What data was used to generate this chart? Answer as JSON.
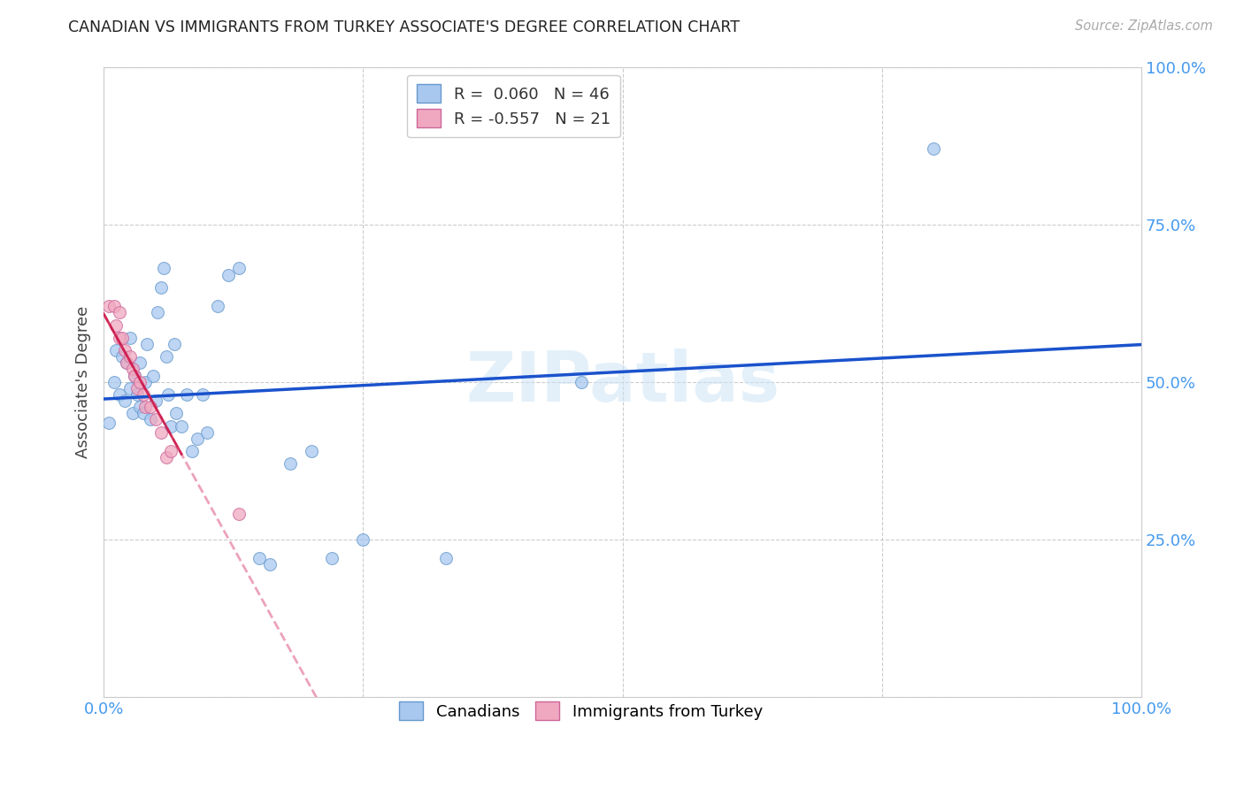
{
  "title": "CANADIAN VS IMMIGRANTS FROM TURKEY ASSOCIATE'S DEGREE CORRELATION CHART",
  "source": "Source: ZipAtlas.com",
  "ylabel": "Associate's Degree",
  "watermark": "ZIPatlas",
  "legend_label_canadian": "Canadians",
  "legend_label_turkey": "Immigrants from Turkey",
  "canadian_color": "#a8c8f0",
  "canadian_edge_color": "#6699cc",
  "turkey_color": "#f0a8c0",
  "turkey_edge_color": "#cc6699",
  "trendline_canadian_color": "#1a52cc",
  "trendline_turkey_color": "#dd5588",
  "R_canadian": 0.06,
  "N_canadian": 46,
  "R_turkey": -0.557,
  "N_turkey": 21,
  "canadian_x": [
    0.005,
    0.01,
    0.012,
    0.015,
    0.018,
    0.02,
    0.022,
    0.025,
    0.025,
    0.028,
    0.03,
    0.032,
    0.035,
    0.035,
    0.038,
    0.04,
    0.042,
    0.045,
    0.048,
    0.05,
    0.052,
    0.055,
    0.058,
    0.06,
    0.062,
    0.065,
    0.068,
    0.07,
    0.075,
    0.08,
    0.085,
    0.09,
    0.095,
    0.1,
    0.11,
    0.12,
    0.13,
    0.15,
    0.16,
    0.18,
    0.2,
    0.22,
    0.25,
    0.33,
    0.46,
    0.8
  ],
  "canadian_y": [
    0.435,
    0.5,
    0.55,
    0.48,
    0.54,
    0.47,
    0.53,
    0.49,
    0.57,
    0.45,
    0.51,
    0.48,
    0.46,
    0.53,
    0.45,
    0.5,
    0.56,
    0.44,
    0.51,
    0.47,
    0.61,
    0.65,
    0.68,
    0.54,
    0.48,
    0.43,
    0.56,
    0.45,
    0.43,
    0.48,
    0.39,
    0.41,
    0.48,
    0.42,
    0.62,
    0.67,
    0.68,
    0.22,
    0.21,
    0.37,
    0.39,
    0.22,
    0.25,
    0.22,
    0.5,
    0.87
  ],
  "turkey_x": [
    0.005,
    0.01,
    0.012,
    0.015,
    0.015,
    0.018,
    0.02,
    0.022,
    0.025,
    0.028,
    0.03,
    0.032,
    0.035,
    0.038,
    0.04,
    0.045,
    0.05,
    0.055,
    0.06,
    0.065,
    0.13
  ],
  "turkey_y": [
    0.62,
    0.62,
    0.59,
    0.57,
    0.61,
    0.57,
    0.55,
    0.53,
    0.54,
    0.52,
    0.51,
    0.49,
    0.5,
    0.48,
    0.46,
    0.46,
    0.44,
    0.42,
    0.38,
    0.39,
    0.29
  ],
  "xlim": [
    0.0,
    1.0
  ],
  "ylim": [
    0.0,
    1.0
  ],
  "xticks": [
    0.0,
    0.25,
    0.5,
    0.75,
    1.0
  ],
  "xtick_labels": [
    "0.0%",
    "",
    "",
    "",
    "100.0%"
  ],
  "yticks": [
    0.0,
    0.25,
    0.5,
    0.75,
    1.0
  ],
  "ytick_labels": [
    "",
    "25.0%",
    "50.0%",
    "75.0%",
    "100.0%"
  ],
  "background_color": "#ffffff",
  "grid_color": "#cccccc",
  "title_color": "#222222",
  "axis_label_color": "#444444",
  "tick_color": "#4499ee",
  "marker_size": 100,
  "marker_alpha": 0.75
}
